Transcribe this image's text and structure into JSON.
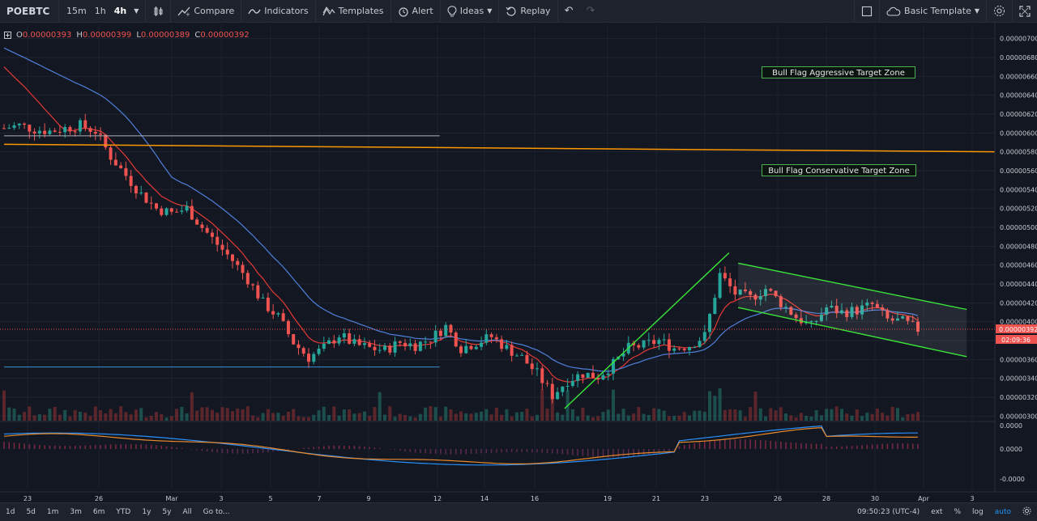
{
  "toolbar": {
    "symbol": "POEBTC",
    "intervals": [
      "15m",
      "1h",
      "4h"
    ],
    "active_interval": "4h",
    "compare_label": "Compare",
    "indicators_label": "Indicators",
    "templates_label": "Templates",
    "alert_label": "Alert",
    "ideas_label": "Ideas",
    "replay_label": "Replay",
    "template_label": "Basic Template"
  },
  "legend": {
    "o_label": "O",
    "o_value": "0.00000393",
    "h_label": "H",
    "h_value": "0.00000399",
    "l_label": "L",
    "l_value": "0.00000389",
    "c_label": "C",
    "c_value": "0.00000392"
  },
  "annotations": {
    "aggressive_zone": "Bull Flag Aggressive Target Zone",
    "conservative_zone": "Bull Flag Conservative Target Zone"
  },
  "price_label": {
    "value": "0.00000392",
    "countdown": "02:09:36"
  },
  "colors": {
    "up": "#26a69a",
    "down": "#ef5350",
    "ema_fast": "#e53935",
    "ema_slow": "#4f7fd9",
    "flag": "#39e639",
    "support": "#ff9800"
  },
  "bottombar": {
    "ranges": [
      "1d",
      "5d",
      "1m",
      "3m",
      "6m",
      "YTD",
      "1y",
      "5y",
      "All",
      "Go to..."
    ],
    "time": "09:50:23 (UTC-4)",
    "ext": "ext",
    "percent": "%",
    "log": "log",
    "auto": "auto"
  },
  "chart_data": {
    "type": "candlestick",
    "symbol": "POEBTC",
    "interval": "4h",
    "x_ticks": [
      "23",
      "26",
      "Mar",
      "3",
      "5",
      "7",
      "9",
      "12",
      "14",
      "16",
      "19",
      "21",
      "23",
      "26",
      "28",
      "30",
      "Apr",
      "3"
    ],
    "price_ticks": [
      "0.00000700",
      "0.00000680",
      "0.00000660",
      "0.00000640",
      "0.00000620",
      "0.00000600",
      "0.00000580",
      "0.00000560",
      "0.00000540",
      "0.00000520",
      "0.00000500",
      "0.00000480",
      "0.00000460",
      "0.00000440",
      "0.00000420",
      "0.00000400",
      "0.00000380",
      "0.00000360",
      "0.00000340",
      "0.00000320",
      "0.00000300"
    ],
    "ylim": [
      2.9e-06,
      7.1e-06
    ],
    "macd_ticks": [
      "0.0000",
      "0.0000",
      "-0.0000"
    ],
    "close_path": [
      [
        0,
        6.05
      ],
      [
        0.5,
        6.08
      ],
      [
        1,
        6.04
      ],
      [
        1.5,
        6.02
      ],
      [
        2,
        6.05
      ],
      [
        2.5,
        6.08
      ],
      [
        3,
        6.02
      ],
      [
        3.5,
        5.75
      ],
      [
        4,
        5.55
      ],
      [
        4.5,
        5.35
      ],
      [
        5,
        5.2
      ],
      [
        5.5,
        5.15
      ],
      [
        6,
        5.2
      ],
      [
        6.5,
        5.0
      ],
      [
        7,
        4.82
      ],
      [
        7.5,
        4.65
      ],
      [
        8,
        4.45
      ],
      [
        8.5,
        4.2
      ],
      [
        9,
        4.05
      ],
      [
        9.5,
        3.78
      ],
      [
        10,
        3.62
      ],
      [
        10.5,
        3.72
      ],
      [
        11,
        3.86
      ],
      [
        11.5,
        3.76
      ],
      [
        12,
        3.72
      ],
      [
        12.5,
        3.7
      ],
      [
        13,
        3.78
      ],
      [
        13.5,
        3.75
      ],
      [
        14,
        3.82
      ],
      [
        14.5,
        3.95
      ],
      [
        15,
        3.72
      ],
      [
        15.5,
        3.78
      ],
      [
        16,
        3.84
      ],
      [
        16.5,
        3.72
      ],
      [
        17,
        3.62
      ],
      [
        17.5,
        3.45
      ],
      [
        18,
        3.22
      ],
      [
        18.5,
        3.38
      ],
      [
        19,
        3.45
      ],
      [
        19.5,
        3.42
      ],
      [
        20,
        3.55
      ],
      [
        20.5,
        3.72
      ],
      [
        21,
        3.75
      ],
      [
        21.5,
        3.8
      ],
      [
        22,
        3.72
      ],
      [
        22.5,
        3.75
      ],
      [
        23,
        3.85
      ],
      [
        23.5,
        4.5
      ],
      [
        24,
        4.3
      ],
      [
        24.5,
        4.25
      ],
      [
        25,
        4.35
      ],
      [
        25.5,
        4.2
      ],
      [
        26,
        4.05
      ],
      [
        26.5,
        3.95
      ],
      [
        27,
        4.15
      ],
      [
        27.5,
        4.1
      ],
      [
        28,
        4.12
      ],
      [
        28.5,
        4.18
      ],
      [
        29,
        4.02
      ],
      [
        29.5,
        4.0
      ],
      [
        30,
        3.92
      ]
    ],
    "support_lines": [
      {
        "price_from": 5.97,
        "price_to": 5.97,
        "date_from": 0,
        "date_to": 14.3
      },
      {
        "price_from": 5.88,
        "price_to": 5.8,
        "date_from": 0,
        "date_to": 35
      },
      {
        "price_from": 3.52,
        "price_to": 3.52,
        "date_from": 0,
        "date_to": 14.3
      }
    ],
    "flagpole": {
      "from": [
        18.4,
        3.08
      ],
      "to": [
        23.8,
        4.73
      ]
    },
    "flag_channel": {
      "upper": [
        [
          24.1,
          4.62
        ],
        [
          31.6,
          4.13
        ]
      ],
      "lower": [
        [
          24.1,
          4.15
        ],
        [
          31.6,
          3.63
        ]
      ]
    },
    "last_price": 3.92e-06
  }
}
